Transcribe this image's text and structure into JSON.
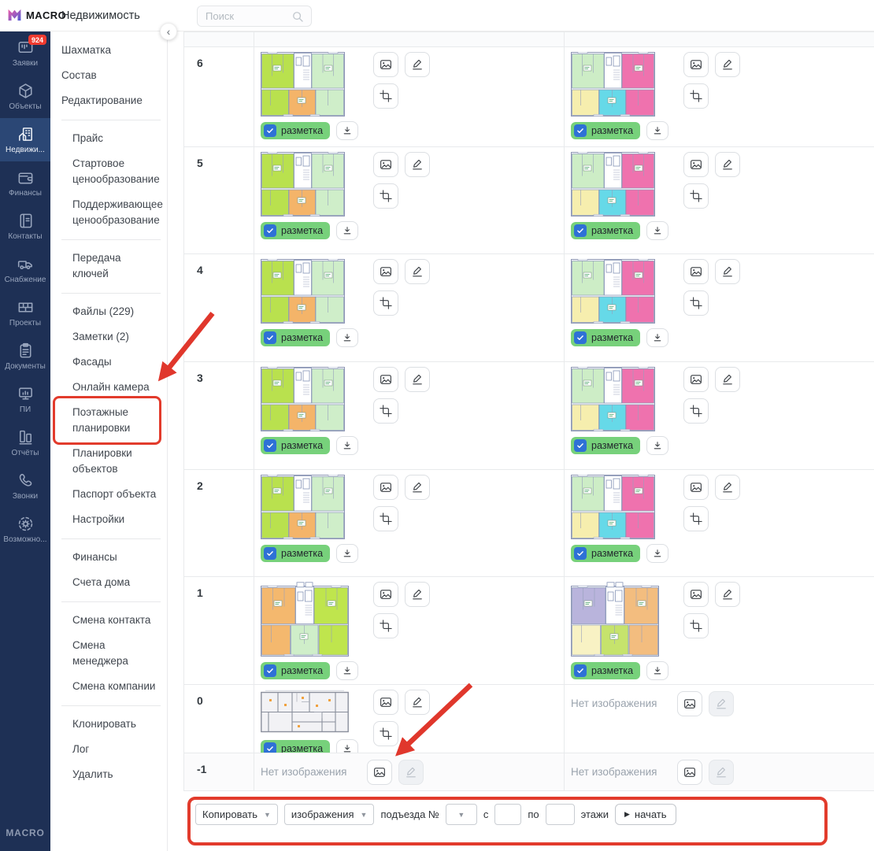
{
  "topbar": {
    "logo": "MACRO",
    "title": "Недвижимость",
    "search_placeholder": "Поиск"
  },
  "rail": {
    "footer": "MACRO",
    "items": [
      {
        "icon": "requests",
        "label": "Заявки",
        "badge": "924"
      },
      {
        "icon": "objects",
        "label": "Объекты"
      },
      {
        "icon": "realty",
        "label": "Недвижи...",
        "active": true
      },
      {
        "icon": "finance",
        "label": "Финансы"
      },
      {
        "icon": "contacts",
        "label": "Контакты"
      },
      {
        "icon": "supply",
        "label": "Снабжение"
      },
      {
        "icon": "projects",
        "label": "Проекты"
      },
      {
        "icon": "documents",
        "label": "Документы"
      },
      {
        "icon": "pi",
        "label": "ПИ"
      },
      {
        "icon": "reports",
        "label": "Отчёты"
      },
      {
        "icon": "calls",
        "label": "Звонки"
      },
      {
        "icon": "opportunities",
        "label": "Возможно..."
      }
    ]
  },
  "submenu": {
    "groups": [
      {
        "items": [
          {
            "label": "Шахматка"
          },
          {
            "label": "Состав"
          },
          {
            "label": "Редактирование"
          }
        ]
      },
      {
        "items": [
          {
            "label": "Прайс"
          },
          {
            "label": "Стартовое ценообразование"
          },
          {
            "label": "Поддерживающее ценообразование"
          }
        ]
      },
      {
        "items": [
          {
            "label": "Передача ключей"
          }
        ]
      },
      {
        "items": [
          {
            "label": "Файлы (229)"
          },
          {
            "label": "Заметки (2)"
          },
          {
            "label": "Фасады"
          },
          {
            "label": "Онлайн камера"
          },
          {
            "label": "Поэтажные планировки",
            "highlighted": true
          },
          {
            "label": "Планировки объектов"
          },
          {
            "label": "Паспорт объекта"
          },
          {
            "label": "Настройки"
          }
        ]
      },
      {
        "items": [
          {
            "label": "Финансы"
          },
          {
            "label": "Счета дома"
          }
        ]
      },
      {
        "items": [
          {
            "label": "Смена контакта"
          },
          {
            "label": "Смена менеджера"
          },
          {
            "label": "Смена компании"
          }
        ]
      },
      {
        "items": [
          {
            "label": "Клонировать"
          },
          {
            "label": "Лог"
          },
          {
            "label": "Удалить"
          }
        ]
      }
    ]
  },
  "table": {
    "marked_label": "разметка",
    "no_image_text": "Нет изображения",
    "rows": [
      {
        "floor": "6",
        "left": {
          "plan": "A",
          "marked": true
        },
        "right": {
          "plan": "B",
          "marked": true
        }
      },
      {
        "floor": "5",
        "left": {
          "plan": "A",
          "marked": true
        },
        "right": {
          "plan": "B",
          "marked": true
        }
      },
      {
        "floor": "4",
        "left": {
          "plan": "A",
          "marked": true
        },
        "right": {
          "plan": "B",
          "marked": true
        }
      },
      {
        "floor": "3",
        "left": {
          "plan": "A",
          "marked": true
        },
        "right": {
          "plan": "B",
          "marked": true
        }
      },
      {
        "floor": "2",
        "left": {
          "plan": "A",
          "marked": true
        },
        "right": {
          "plan": "B",
          "marked": true
        }
      },
      {
        "floor": "1",
        "left": {
          "plan": "C",
          "marked": true
        },
        "right": {
          "plan": "D",
          "marked": true
        }
      },
      {
        "floor": "0",
        "left": {
          "plan": "E",
          "marked": true
        },
        "right": {
          "plan": null
        }
      },
      {
        "floor": "-1",
        "left": {
          "plan": null
        },
        "right": {
          "plan": null
        }
      }
    ]
  },
  "plans": {
    "A": {
      "tl": "#b9e14e",
      "tr": "#cfeec9",
      "bl": "#b9e14e",
      "bc": "#f4b469",
      "br": "#cfeec9"
    },
    "B": {
      "tl": "#cdedc6",
      "tr": "#ef72ae",
      "bl": "#f6eeae",
      "bc": "#66d9e8",
      "br": "#ef72ae"
    },
    "C": {
      "tl": "#f4b86e",
      "tr": "#bfe54d",
      "bl": "#f4b86e",
      "bc": "#cfeec9",
      "br": "#bfe54d"
    },
    "D": {
      "tl": "#b9b4dc",
      "tr": "#f3bd7f",
      "bl": "#f8f2c4",
      "bc": "#c6e36c",
      "br": "#f3bd7f"
    },
    "E": {
      "base": "#f2f2f5",
      "wall": "#8a8f9c",
      "accent": "#f0a13e"
    }
  },
  "footer_controls": {
    "action": "Копировать",
    "what": "изображения",
    "entrance_label": "подъезда №",
    "from_label": "с",
    "from_value": "",
    "to_label": "по",
    "to_value": "",
    "floors_label": "этажи",
    "start_label": "начать"
  },
  "colors": {
    "accent_red": "#e23b2c",
    "badge_green": "#77d17b",
    "check_blue": "#2e71d6",
    "rail_bg": "#1e3055",
    "rail_active": "#2b4775",
    "badge_red": "#f03b30"
  }
}
